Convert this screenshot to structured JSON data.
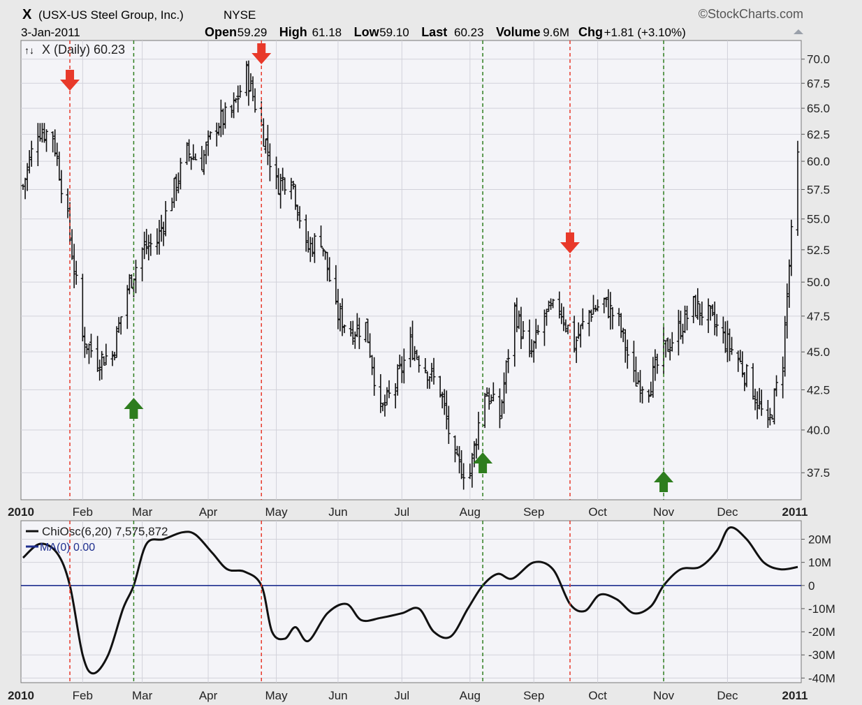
{
  "header": {
    "symbol": "X",
    "company": "(USX-US Steel Group, Inc.)",
    "exchange": "NYSE",
    "brand": "©StockCharts.com",
    "date": "3-Jan-2011",
    "stats": [
      {
        "label": "Open",
        "value": "59.29"
      },
      {
        "label": "High",
        "value": "61.18"
      },
      {
        "label": "Low",
        "value": "59.10"
      },
      {
        "label": "Last",
        "value": "60.23"
      },
      {
        "label": "Volume",
        "value": "9.6M"
      },
      {
        "label": "Chg",
        "value": "+1.81 (+3.10%)"
      }
    ]
  },
  "colors": {
    "background": "#e9e9e9",
    "panel": "#f4f4f8",
    "grid": "#d2d2da",
    "price_bars": "#111111",
    "sell_signal": "#e8392a",
    "buy_signal": "#2e7d1e",
    "zero_line": "#1f2f8f",
    "oscillator": "#111111"
  },
  "chart_data": [
    {
      "type": "ohlc",
      "legend": "X (Daily) 60.23",
      "x_tick_labels": [
        "2010",
        "Feb",
        "Mar",
        "Apr",
        "May",
        "Jun",
        "Jul",
        "Aug",
        "Sep",
        "Oct",
        "Nov",
        "Dec",
        "2011"
      ],
      "x_tick_dates": [
        "2010-01-04",
        "2010-02-01",
        "2010-03-01",
        "2010-04-01",
        "2010-05-03",
        "2010-06-01",
        "2010-07-01",
        "2010-08-02",
        "2010-09-01",
        "2010-10-01",
        "2010-11-01",
        "2010-12-01",
        "2011-01-03"
      ],
      "y_scale": "log",
      "y_ticks": [
        "37.5",
        "40.0",
        "42.5",
        "45.0",
        "47.5",
        "50.0",
        "52.5",
        "55.0",
        "57.5",
        "60.0",
        "62.5",
        "65.0",
        "67.5",
        "70.0"
      ],
      "ylim": [
        36.0,
        72.0
      ],
      "grid": true,
      "closes_weekly": [
        {
          "date": "2010-01-04",
          "close": 57.8
        },
        {
          "date": "2010-01-11",
          "close": 63.0
        },
        {
          "date": "2010-01-18",
          "close": 62.4
        },
        {
          "date": "2010-01-25",
          "close": 54.8
        },
        {
          "date": "2010-02-01",
          "close": 46.0
        },
        {
          "date": "2010-02-08",
          "close": 44.5
        },
        {
          "date": "2010-02-15",
          "close": 44.8
        },
        {
          "date": "2010-02-22",
          "close": 49.5
        },
        {
          "date": "2010-03-01",
          "close": 52.5
        },
        {
          "date": "2010-03-08",
          "close": 53.2
        },
        {
          "date": "2010-03-15",
          "close": 57.0
        },
        {
          "date": "2010-03-22",
          "close": 60.8
        },
        {
          "date": "2010-03-29",
          "close": 60.0
        },
        {
          "date": "2010-04-05",
          "close": 63.5
        },
        {
          "date": "2010-04-12",
          "close": 64.5
        },
        {
          "date": "2010-04-19",
          "close": 68.5
        },
        {
          "date": "2010-04-26",
          "close": 63.2
        },
        {
          "date": "2010-05-03",
          "close": 58.0
        },
        {
          "date": "2010-05-10",
          "close": 58.8
        },
        {
          "date": "2010-05-17",
          "close": 52.5
        },
        {
          "date": "2010-05-24",
          "close": 53.5
        },
        {
          "date": "2010-05-31",
          "close": 47.8
        },
        {
          "date": "2010-06-07",
          "close": 46.5
        },
        {
          "date": "2010-06-14",
          "close": 46.8
        },
        {
          "date": "2010-06-21",
          "close": 41.0
        },
        {
          "date": "2010-06-28",
          "close": 42.8
        },
        {
          "date": "2010-07-05",
          "close": 45.5
        },
        {
          "date": "2010-07-12",
          "close": 44.0
        },
        {
          "date": "2010-07-19",
          "close": 42.5
        },
        {
          "date": "2010-07-26",
          "close": 38.0
        },
        {
          "date": "2010-08-02",
          "close": 37.5
        },
        {
          "date": "2010-08-09",
          "close": 42.5
        },
        {
          "date": "2010-08-16",
          "close": 40.8
        },
        {
          "date": "2010-08-23",
          "close": 48.0
        },
        {
          "date": "2010-08-30",
          "close": 44.5
        },
        {
          "date": "2010-09-06",
          "close": 47.5
        },
        {
          "date": "2010-09-13",
          "close": 48.2
        },
        {
          "date": "2010-09-20",
          "close": 45.5
        },
        {
          "date": "2010-09-27",
          "close": 47.8
        },
        {
          "date": "2010-10-04",
          "close": 48.5
        },
        {
          "date": "2010-10-11",
          "close": 47.0
        },
        {
          "date": "2010-10-18",
          "close": 43.2
        },
        {
          "date": "2010-10-25",
          "close": 42.8
        },
        {
          "date": "2010-11-01",
          "close": 45.0
        },
        {
          "date": "2010-11-08",
          "close": 46.5
        },
        {
          "date": "2010-11-15",
          "close": 48.2
        },
        {
          "date": "2010-11-22",
          "close": 47.5
        },
        {
          "date": "2010-11-29",
          "close": 46.0
        },
        {
          "date": "2010-12-06",
          "close": 44.5
        },
        {
          "date": "2010-12-13",
          "close": 42.5
        },
        {
          "date": "2010-12-20",
          "close": 40.0
        },
        {
          "date": "2010-12-27",
          "close": 44.5
        },
        {
          "date": "2011-01-03",
          "close": 60.23
        }
      ]
    },
    {
      "type": "line",
      "series": [
        {
          "name": "ChiOsc(6,20) 7,575,872",
          "color": "#111111"
        },
        {
          "name": "MA(0) 0.00",
          "color": "#1f2f8f"
        }
      ],
      "y_ticks": [
        "20M",
        "10M",
        "0",
        "-10M",
        "-20M",
        "-30M",
        "-40M"
      ],
      "ylim": [
        -42000000,
        28000000
      ],
      "x_tick_labels": [
        "2010",
        "Feb",
        "Mar",
        "Apr",
        "May",
        "Jun",
        "Jul",
        "Aug",
        "Sep",
        "Oct",
        "Nov",
        "Dec",
        "2011"
      ],
      "zero_line": 0,
      "points": [
        {
          "date": "2010-01-04",
          "value": 12000000
        },
        {
          "date": "2010-01-12",
          "value": 18000000
        },
        {
          "date": "2010-01-20",
          "value": 14000000
        },
        {
          "date": "2010-01-26",
          "value": 0
        },
        {
          "date": "2010-02-01",
          "value": -30000000
        },
        {
          "date": "2010-02-06",
          "value": -38000000
        },
        {
          "date": "2010-02-13",
          "value": -30000000
        },
        {
          "date": "2010-02-20",
          "value": -10000000
        },
        {
          "date": "2010-02-25",
          "value": 0
        },
        {
          "date": "2010-03-03",
          "value": 18000000
        },
        {
          "date": "2010-03-11",
          "value": 20000000
        },
        {
          "date": "2010-03-20",
          "value": 23000000
        },
        {
          "date": "2010-03-26",
          "value": 22000000
        },
        {
          "date": "2010-04-03",
          "value": 14000000
        },
        {
          "date": "2010-04-10",
          "value": 7000000
        },
        {
          "date": "2010-04-18",
          "value": 6000000
        },
        {
          "date": "2010-04-26",
          "value": 0
        },
        {
          "date": "2010-05-01",
          "value": -20000000
        },
        {
          "date": "2010-05-07",
          "value": -23000000
        },
        {
          "date": "2010-05-12",
          "value": -18000000
        },
        {
          "date": "2010-05-18",
          "value": -24000000
        },
        {
          "date": "2010-05-27",
          "value": -12000000
        },
        {
          "date": "2010-06-05",
          "value": -8000000
        },
        {
          "date": "2010-06-12",
          "value": -15000000
        },
        {
          "date": "2010-06-21",
          "value": -14000000
        },
        {
          "date": "2010-07-01",
          "value": -12000000
        },
        {
          "date": "2010-07-09",
          "value": -10000000
        },
        {
          "date": "2010-07-16",
          "value": -20000000
        },
        {
          "date": "2010-07-24",
          "value": -22000000
        },
        {
          "date": "2010-08-01",
          "value": -10000000
        },
        {
          "date": "2010-08-08",
          "value": 0
        },
        {
          "date": "2010-08-15",
          "value": 5000000
        },
        {
          "date": "2010-08-22",
          "value": 3000000
        },
        {
          "date": "2010-09-01",
          "value": 10000000
        },
        {
          "date": "2010-09-10",
          "value": 7000000
        },
        {
          "date": "2010-09-18",
          "value": -8000000
        },
        {
          "date": "2010-09-25",
          "value": -11000000
        },
        {
          "date": "2010-10-02",
          "value": -4000000
        },
        {
          "date": "2010-10-10",
          "value": -6000000
        },
        {
          "date": "2010-10-18",
          "value": -12000000
        },
        {
          "date": "2010-10-26",
          "value": -9000000
        },
        {
          "date": "2010-11-01",
          "value": 0
        },
        {
          "date": "2010-11-09",
          "value": 7000000
        },
        {
          "date": "2010-11-18",
          "value": 8000000
        },
        {
          "date": "2010-11-26",
          "value": 15000000
        },
        {
          "date": "2010-12-02",
          "value": 25000000
        },
        {
          "date": "2010-12-10",
          "value": 20000000
        },
        {
          "date": "2010-12-18",
          "value": 10000000
        },
        {
          "date": "2010-12-26",
          "value": 7000000
        },
        {
          "date": "2011-01-03",
          "value": 8000000
        }
      ]
    }
  ],
  "signals": [
    {
      "date": "2010-01-26",
      "kind": "sell"
    },
    {
      "date": "2010-02-25",
      "kind": "buy"
    },
    {
      "date": "2010-04-26",
      "kind": "sell"
    },
    {
      "date": "2010-08-08",
      "kind": "buy"
    },
    {
      "date": "2010-09-18",
      "kind": "sell"
    },
    {
      "date": "2010-11-01",
      "kind": "buy"
    }
  ]
}
